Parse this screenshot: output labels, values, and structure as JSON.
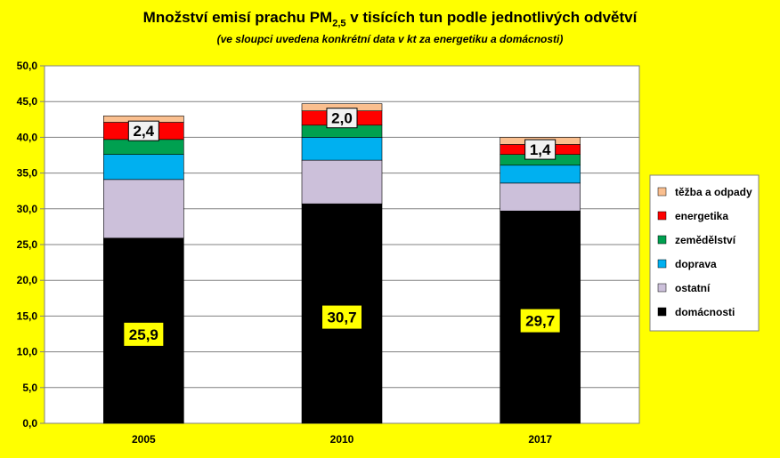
{
  "chart_data": {
    "type": "bar",
    "stacked": true,
    "title_main": "Množství emisí prachu PM",
    "title_sub": "2,5",
    "title_rest": " v tisících tun podle jednotlivých odvětví",
    "subtitle": "(ve sloupci uvedena konkrétní data v kt za energetiku a domácnosti)",
    "categories": [
      "2005",
      "2010",
      "2017"
    ],
    "ylim": [
      0,
      50
    ],
    "yticks": [
      "0,0",
      "5,0",
      "10,0",
      "15,0",
      "20,0",
      "25,0",
      "30,0",
      "35,0",
      "40,0",
      "45,0",
      "50,0"
    ],
    "grid": true,
    "legend_position": "right",
    "series": [
      {
        "name": "domácnosti",
        "color": "#000000",
        "values": [
          25.9,
          30.7,
          29.7
        ]
      },
      {
        "name": "ostatní",
        "color": "#ccc0da",
        "values": [
          8.2,
          6.1,
          3.9
        ]
      },
      {
        "name": "doprava",
        "color": "#00b0f0",
        "values": [
          3.5,
          3.2,
          2.5
        ]
      },
      {
        "name": "zemědělství",
        "color": "#00a050",
        "values": [
          2.1,
          1.7,
          1.5
        ]
      },
      {
        "name": "energetika",
        "color": "#ff0000",
        "values": [
          2.4,
          2.0,
          1.4
        ]
      },
      {
        "name": "těžba a odpady",
        "color": "#fabf8f",
        "values": [
          0.9,
          1.0,
          1.0
        ]
      }
    ],
    "data_labels": {
      "domacnosti": [
        "25,9",
        "30,7",
        "29,7"
      ],
      "energetika": [
        "2,4",
        "2,0",
        "1,4"
      ]
    }
  }
}
